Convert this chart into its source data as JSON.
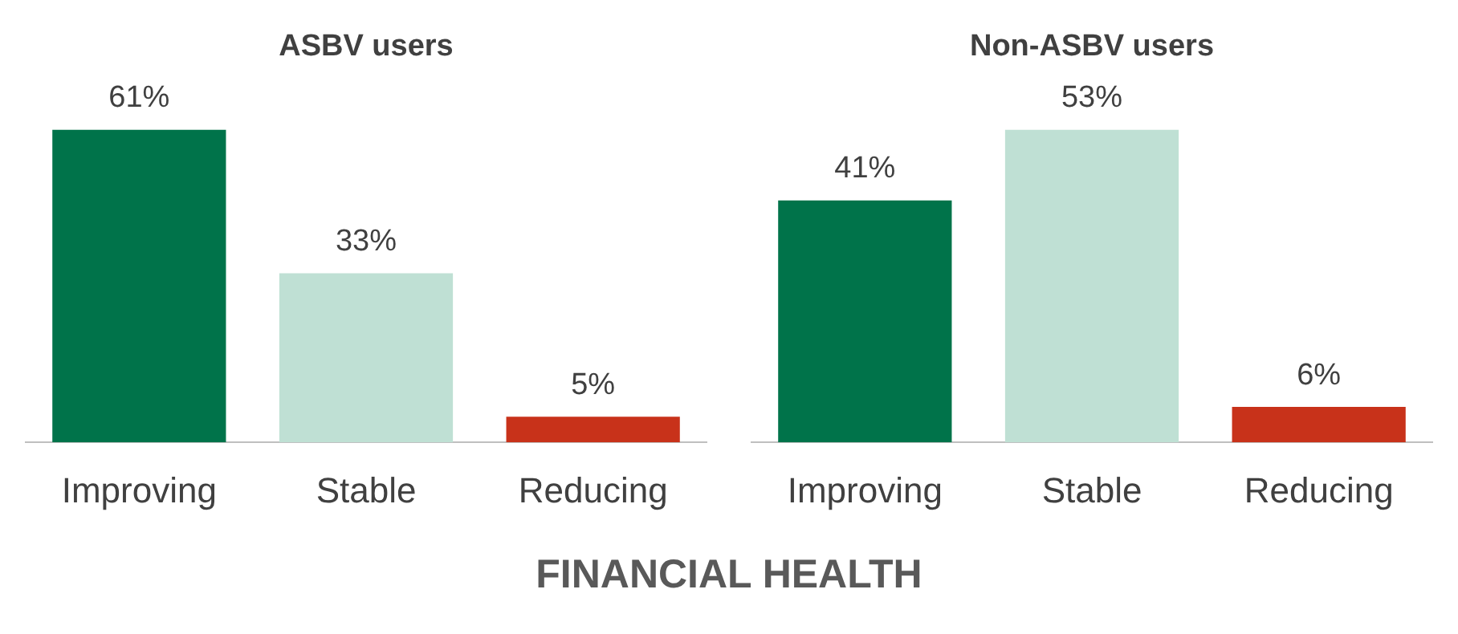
{
  "chart_data": [
    {
      "type": "bar",
      "title": "ASBV users",
      "xlabel": "FINANCIAL HEALTH",
      "categories": [
        "Improving",
        "Stable",
        "Reducing"
      ],
      "values": [
        61,
        33,
        5
      ],
      "value_labels": [
        "61%",
        "33%",
        "5%"
      ],
      "colors": [
        "#00734a",
        "#bfe0d4",
        "#c8321a"
      ],
      "grid": false,
      "legend": false,
      "tick_labels": "x"
    },
    {
      "type": "bar",
      "title": "Non-ASBV users",
      "categories": [
        "Improving",
        "Stable",
        "Reducing"
      ],
      "values": [
        41,
        53,
        6
      ],
      "value_labels": [
        "41%",
        "53%",
        "6%"
      ],
      "colors": [
        "#00734a",
        "#bfe0d4",
        "#c8321a"
      ],
      "grid": false,
      "legend": false,
      "tick_labels": "x"
    }
  ]
}
